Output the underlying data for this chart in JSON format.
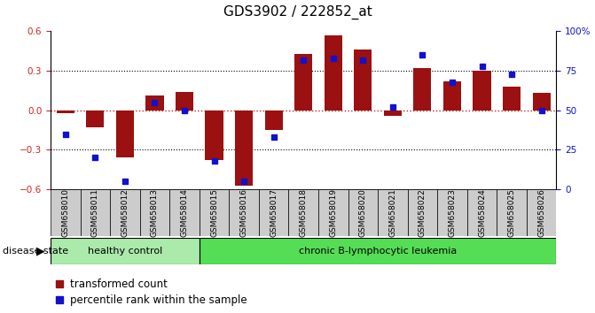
{
  "title": "GDS3902 / 222852_at",
  "samples": [
    "GSM658010",
    "GSM658011",
    "GSM658012",
    "GSM658013",
    "GSM658014",
    "GSM658015",
    "GSM658016",
    "GSM658017",
    "GSM658018",
    "GSM658019",
    "GSM658020",
    "GSM658021",
    "GSM658022",
    "GSM658023",
    "GSM658024",
    "GSM658025",
    "GSM658026"
  ],
  "bar_values": [
    -0.02,
    -0.13,
    -0.36,
    0.11,
    0.14,
    -0.38,
    -0.57,
    -0.15,
    0.43,
    0.57,
    0.46,
    -0.04,
    0.32,
    0.22,
    0.3,
    0.18,
    0.13
  ],
  "percentile_values": [
    35,
    20,
    5,
    55,
    50,
    18,
    5,
    33,
    82,
    83,
    82,
    52,
    85,
    68,
    78,
    73,
    50
  ],
  "healthy_count": 5,
  "bar_color": "#9B1010",
  "percentile_color": "#1111CC",
  "ylim": [
    -0.6,
    0.6
  ],
  "yticks": [
    -0.6,
    -0.3,
    0.0,
    0.3,
    0.6
  ],
  "right_yticks": [
    0,
    25,
    50,
    75,
    100
  ],
  "hline_color": "#CC2222",
  "dotted_color": "black",
  "healthy_color": "#AAEAAA",
  "leukemia_color": "#55DD55",
  "sample_label_bg": "#CCCCCC",
  "legend_items": [
    {
      "label": "transformed count",
      "color": "#9B1010"
    },
    {
      "label": "percentile rank within the sample",
      "color": "#1111CC"
    }
  ],
  "disease_state_label": "disease state",
  "title_fontsize": 11,
  "tick_fontsize": 7.5,
  "label_fontsize": 8.5
}
